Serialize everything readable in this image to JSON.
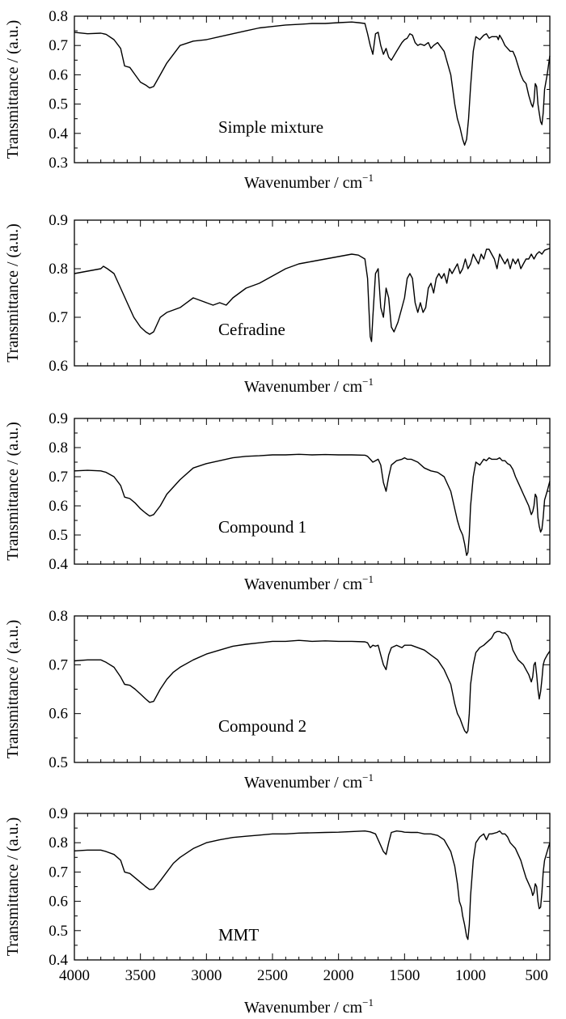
{
  "chart_data": [
    {
      "type": "line",
      "annotation": "Simple mixture",
      "xlabel": "Wavenumber / cm",
      "xlabel_sup": "−1",
      "ylabel": "Transmittance / (a.u.)",
      "xlim": [
        4000,
        400
      ],
      "ylim": [
        0.3,
        0.8
      ],
      "yticks": [
        "0.3",
        "0.4",
        "0.5",
        "0.6",
        "0.7",
        "0.8"
      ],
      "xticks": [],
      "series": [
        {
          "x": [
            4000,
            3900,
            3800,
            3760,
            3700,
            3650,
            3620,
            3580,
            3540,
            3500,
            3460,
            3430,
            3400,
            3350,
            3300,
            3200,
            3100,
            3000,
            2900,
            2800,
            2700,
            2600,
            2500,
            2400,
            2300,
            2200,
            2100,
            2000,
            1900,
            1850,
            1800,
            1780,
            1760,
            1740,
            1720,
            1700,
            1680,
            1660,
            1640,
            1620,
            1600,
            1560,
            1520,
            1500,
            1480,
            1460,
            1440,
            1420,
            1400,
            1380,
            1350,
            1320,
            1300,
            1280,
            1250,
            1200,
            1150,
            1120,
            1100,
            1080,
            1060,
            1045,
            1030,
            1015,
            1000,
            980,
            960,
            930,
            900,
            880,
            860,
            840,
            800,
            790,
            780,
            760,
            740,
            700,
            680,
            660,
            640,
            620,
            600,
            580,
            560,
            540,
            530,
            520,
            510,
            500,
            490,
            480,
            470,
            460,
            450,
            440,
            420,
            400
          ],
          "y": [
            0.745,
            0.74,
            0.742,
            0.738,
            0.72,
            0.69,
            0.63,
            0.625,
            0.6,
            0.575,
            0.565,
            0.555,
            0.56,
            0.6,
            0.64,
            0.7,
            0.715,
            0.72,
            0.73,
            0.74,
            0.75,
            0.76,
            0.765,
            0.77,
            0.772,
            0.775,
            0.775,
            0.778,
            0.78,
            0.778,
            0.775,
            0.74,
            0.7,
            0.67,
            0.74,
            0.745,
            0.7,
            0.67,
            0.69,
            0.66,
            0.65,
            0.68,
            0.71,
            0.72,
            0.725,
            0.74,
            0.735,
            0.71,
            0.7,
            0.705,
            0.7,
            0.71,
            0.69,
            0.7,
            0.71,
            0.68,
            0.6,
            0.5,
            0.45,
            0.42,
            0.38,
            0.36,
            0.38,
            0.45,
            0.56,
            0.68,
            0.73,
            0.72,
            0.735,
            0.74,
            0.725,
            0.73,
            0.73,
            0.72,
            0.735,
            0.72,
            0.7,
            0.68,
            0.68,
            0.66,
            0.63,
            0.6,
            0.58,
            0.57,
            0.53,
            0.5,
            0.49,
            0.51,
            0.57,
            0.56,
            0.5,
            0.47,
            0.44,
            0.43,
            0.47,
            0.55,
            0.6,
            0.665
          ]
        }
      ]
    },
    {
      "type": "line",
      "annotation": "Cefradine",
      "xlabel": "Wavenumber / cm",
      "xlabel_sup": "−1",
      "ylabel": "Transmittance / (a.u.)",
      "xlim": [
        4000,
        400
      ],
      "ylim": [
        0.6,
        0.9
      ],
      "yticks": [
        "0.6",
        "0.7",
        "0.8",
        "0.9"
      ],
      "xticks": [],
      "series": [
        {
          "x": [
            4000,
            3900,
            3800,
            3780,
            3750,
            3700,
            3650,
            3600,
            3550,
            3500,
            3460,
            3430,
            3400,
            3350,
            3300,
            3250,
            3200,
            3150,
            3100,
            3050,
            3000,
            2950,
            2900,
            2850,
            2800,
            2700,
            2600,
            2500,
            2400,
            2300,
            2200,
            2100,
            2000,
            1900,
            1850,
            1800,
            1780,
            1770,
            1760,
            1750,
            1740,
            1720,
            1700,
            1680,
            1660,
            1640,
            1620,
            1600,
            1580,
            1550,
            1520,
            1500,
            1480,
            1460,
            1440,
            1420,
            1400,
            1380,
            1360,
            1340,
            1320,
            1300,
            1280,
            1260,
            1240,
            1220,
            1200,
            1180,
            1160,
            1140,
            1120,
            1100,
            1080,
            1060,
            1040,
            1020,
            1000,
            980,
            960,
            940,
            920,
            900,
            880,
            860,
            840,
            820,
            800,
            780,
            760,
            740,
            720,
            700,
            680,
            660,
            640,
            620,
            600,
            580,
            560,
            540,
            520,
            500,
            480,
            460,
            440,
            420,
            400
          ],
          "y": [
            0.79,
            0.795,
            0.8,
            0.805,
            0.8,
            0.79,
            0.76,
            0.73,
            0.7,
            0.68,
            0.67,
            0.665,
            0.67,
            0.7,
            0.71,
            0.715,
            0.72,
            0.73,
            0.74,
            0.735,
            0.73,
            0.725,
            0.73,
            0.725,
            0.74,
            0.76,
            0.77,
            0.785,
            0.8,
            0.81,
            0.815,
            0.82,
            0.825,
            0.83,
            0.828,
            0.82,
            0.78,
            0.72,
            0.66,
            0.65,
            0.7,
            0.79,
            0.8,
            0.72,
            0.7,
            0.76,
            0.74,
            0.68,
            0.67,
            0.69,
            0.72,
            0.74,
            0.78,
            0.79,
            0.78,
            0.73,
            0.71,
            0.73,
            0.71,
            0.72,
            0.76,
            0.77,
            0.75,
            0.78,
            0.79,
            0.78,
            0.79,
            0.77,
            0.8,
            0.79,
            0.8,
            0.81,
            0.79,
            0.8,
            0.82,
            0.8,
            0.81,
            0.83,
            0.82,
            0.81,
            0.83,
            0.82,
            0.84,
            0.84,
            0.83,
            0.82,
            0.8,
            0.83,
            0.82,
            0.81,
            0.82,
            0.8,
            0.82,
            0.81,
            0.82,
            0.8,
            0.81,
            0.82,
            0.82,
            0.83,
            0.82,
            0.83,
            0.835,
            0.83,
            0.838,
            0.84,
            0.842
          ]
        }
      ]
    },
    {
      "type": "line",
      "annotation": "Compound 1",
      "xlabel": "Wavenumber / cm",
      "xlabel_sup": "−1",
      "ylabel": "Transmittance / (a.u.)",
      "xlim": [
        4000,
        400
      ],
      "ylim": [
        0.4,
        0.9
      ],
      "yticks": [
        "0.4",
        "0.5",
        "0.6",
        "0.7",
        "0.8",
        "0.9"
      ],
      "xticks": [],
      "series": [
        {
          "x": [
            4000,
            3900,
            3800,
            3760,
            3700,
            3650,
            3620,
            3580,
            3540,
            3500,
            3460,
            3430,
            3400,
            3350,
            3300,
            3250,
            3200,
            3100,
            3000,
            2900,
            2800,
            2700,
            2600,
            2500,
            2400,
            2300,
            2200,
            2100,
            2000,
            1900,
            1800,
            1780,
            1760,
            1740,
            1720,
            1700,
            1680,
            1660,
            1640,
            1620,
            1600,
            1560,
            1520,
            1500,
            1480,
            1450,
            1400,
            1350,
            1300,
            1250,
            1200,
            1150,
            1120,
            1100,
            1080,
            1060,
            1045,
            1030,
            1020,
            1010,
            1000,
            980,
            960,
            930,
            900,
            880,
            860,
            840,
            800,
            780,
            760,
            740,
            720,
            700,
            680,
            660,
            640,
            620,
            600,
            580,
            560,
            540,
            530,
            520,
            510,
            500,
            490,
            480,
            470,
            460,
            450,
            440,
            420,
            400
          ],
          "y": [
            0.72,
            0.722,
            0.72,
            0.715,
            0.7,
            0.67,
            0.63,
            0.625,
            0.61,
            0.59,
            0.575,
            0.565,
            0.57,
            0.6,
            0.64,
            0.665,
            0.69,
            0.73,
            0.745,
            0.755,
            0.765,
            0.77,
            0.772,
            0.775,
            0.775,
            0.777,
            0.775,
            0.776,
            0.775,
            0.775,
            0.774,
            0.77,
            0.76,
            0.75,
            0.755,
            0.76,
            0.74,
            0.68,
            0.65,
            0.7,
            0.74,
            0.755,
            0.76,
            0.765,
            0.76,
            0.76,
            0.75,
            0.73,
            0.72,
            0.715,
            0.7,
            0.65,
            0.59,
            0.55,
            0.52,
            0.5,
            0.47,
            0.43,
            0.44,
            0.5,
            0.6,
            0.7,
            0.75,
            0.74,
            0.76,
            0.755,
            0.765,
            0.76,
            0.76,
            0.765,
            0.755,
            0.755,
            0.745,
            0.74,
            0.725,
            0.7,
            0.68,
            0.66,
            0.64,
            0.62,
            0.6,
            0.57,
            0.58,
            0.6,
            0.64,
            0.63,
            0.56,
            0.53,
            0.51,
            0.52,
            0.56,
            0.62,
            0.65,
            0.685
          ]
        }
      ]
    },
    {
      "type": "line",
      "annotation": "Compound 2",
      "xlabel": "Wavenumber / cm",
      "xlabel_sup": "−1",
      "ylabel": "Transmittance / (a.u.)",
      "xlim": [
        4000,
        400
      ],
      "ylim": [
        0.5,
        0.8
      ],
      "yticks": [
        "0.5",
        "0.6",
        "0.7",
        "0.8"
      ],
      "xticks": [],
      "series": [
        {
          "x": [
            4000,
            3900,
            3800,
            3760,
            3700,
            3650,
            3620,
            3580,
            3540,
            3500,
            3460,
            3430,
            3400,
            3350,
            3300,
            3250,
            3200,
            3100,
            3000,
            2900,
            2800,
            2700,
            2600,
            2500,
            2400,
            2300,
            2200,
            2100,
            2000,
            1900,
            1800,
            1780,
            1760,
            1740,
            1720,
            1700,
            1680,
            1660,
            1640,
            1620,
            1600,
            1560,
            1520,
            1500,
            1450,
            1400,
            1350,
            1300,
            1250,
            1200,
            1150,
            1120,
            1100,
            1080,
            1060,
            1045,
            1030,
            1020,
            1010,
            1000,
            980,
            960,
            930,
            900,
            880,
            860,
            840,
            820,
            800,
            780,
            760,
            740,
            720,
            700,
            680,
            660,
            640,
            620,
            600,
            580,
            560,
            540,
            530,
            520,
            510,
            500,
            490,
            480,
            470,
            460,
            450,
            440,
            420,
            400
          ],
          "y": [
            0.708,
            0.71,
            0.71,
            0.705,
            0.695,
            0.675,
            0.66,
            0.658,
            0.65,
            0.64,
            0.63,
            0.623,
            0.625,
            0.65,
            0.67,
            0.685,
            0.695,
            0.71,
            0.722,
            0.73,
            0.738,
            0.742,
            0.745,
            0.748,
            0.748,
            0.75,
            0.748,
            0.749,
            0.748,
            0.748,
            0.747,
            0.745,
            0.735,
            0.74,
            0.738,
            0.74,
            0.72,
            0.7,
            0.69,
            0.72,
            0.735,
            0.74,
            0.735,
            0.74,
            0.74,
            0.735,
            0.73,
            0.72,
            0.71,
            0.69,
            0.66,
            0.62,
            0.6,
            0.59,
            0.575,
            0.565,
            0.56,
            0.565,
            0.6,
            0.66,
            0.7,
            0.725,
            0.735,
            0.74,
            0.745,
            0.75,
            0.755,
            0.765,
            0.768,
            0.768,
            0.765,
            0.765,
            0.76,
            0.75,
            0.73,
            0.72,
            0.71,
            0.705,
            0.7,
            0.69,
            0.68,
            0.665,
            0.675,
            0.7,
            0.705,
            0.68,
            0.65,
            0.63,
            0.645,
            0.67,
            0.7,
            0.71,
            0.72,
            0.728
          ]
        }
      ]
    },
    {
      "type": "line",
      "annotation": "MMT",
      "xlabel": "Wavenumber / cm",
      "xlabel_sup": "−1",
      "ylabel": "Transmittance / (a.u.)",
      "xlim": [
        4000,
        400
      ],
      "ylim": [
        0.4,
        0.9
      ],
      "yticks": [
        "0.4",
        "0.5",
        "0.6",
        "0.7",
        "0.8",
        "0.9"
      ],
      "xticks": [
        "4000",
        "3500",
        "3000",
        "2500",
        "2000",
        "1500",
        "1000",
        "500"
      ],
      "series": [
        {
          "x": [
            4000,
            3900,
            3800,
            3760,
            3700,
            3650,
            3620,
            3580,
            3540,
            3500,
            3460,
            3430,
            3400,
            3350,
            3300,
            3250,
            3200,
            3100,
            3000,
            2900,
            2800,
            2700,
            2600,
            2500,
            2400,
            2300,
            2200,
            2100,
            2000,
            1900,
            1800,
            1760,
            1720,
            1690,
            1660,
            1640,
            1620,
            1600,
            1560,
            1520,
            1500,
            1450,
            1400,
            1350,
            1300,
            1250,
            1200,
            1150,
            1120,
            1100,
            1085,
            1070,
            1060,
            1045,
            1030,
            1020,
            1010,
            1000,
            980,
            960,
            930,
            900,
            880,
            860,
            840,
            800,
            780,
            760,
            740,
            720,
            700,
            680,
            660,
            640,
            620,
            600,
            580,
            560,
            540,
            530,
            520,
            510,
            500,
            490,
            480,
            470,
            460,
            450,
            440,
            420,
            400
          ],
          "y": [
            0.772,
            0.775,
            0.775,
            0.77,
            0.76,
            0.74,
            0.7,
            0.695,
            0.68,
            0.665,
            0.65,
            0.64,
            0.642,
            0.67,
            0.7,
            0.73,
            0.75,
            0.78,
            0.8,
            0.81,
            0.818,
            0.822,
            0.826,
            0.83,
            0.83,
            0.833,
            0.834,
            0.835,
            0.836,
            0.838,
            0.84,
            0.837,
            0.83,
            0.8,
            0.77,
            0.76,
            0.8,
            0.835,
            0.84,
            0.838,
            0.836,
            0.835,
            0.835,
            0.83,
            0.83,
            0.825,
            0.81,
            0.77,
            0.72,
            0.66,
            0.6,
            0.58,
            0.55,
            0.52,
            0.48,
            0.47,
            0.52,
            0.62,
            0.74,
            0.8,
            0.82,
            0.83,
            0.81,
            0.83,
            0.83,
            0.835,
            0.84,
            0.83,
            0.83,
            0.82,
            0.8,
            0.79,
            0.78,
            0.76,
            0.74,
            0.71,
            0.68,
            0.66,
            0.64,
            0.62,
            0.63,
            0.66,
            0.65,
            0.6,
            0.575,
            0.58,
            0.63,
            0.7,
            0.74,
            0.77,
            0.8
          ]
        }
      ]
    }
  ]
}
